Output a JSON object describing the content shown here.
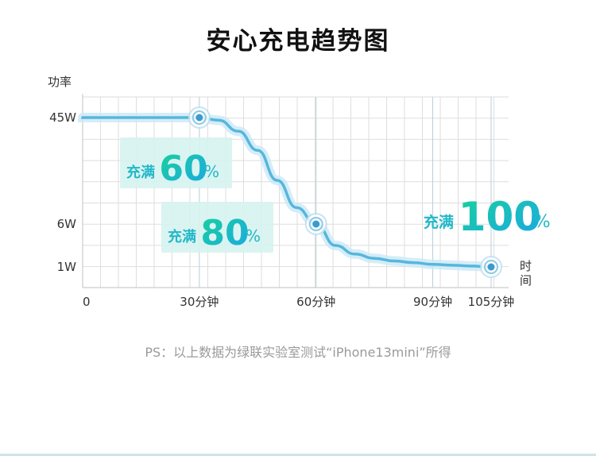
{
  "title": "安心充电趋势图",
  "note": "PS：以上数据为绿联实验室测试“iPhone13mini”所得",
  "chart_data": {
    "type": "line",
    "title": "安心充电趋势图",
    "ylabel": "功率",
    "xlabel": "时间",
    "x_ticks": [
      {
        "value": 0,
        "label": "0"
      },
      {
        "value": 30,
        "label": "30分钟"
      },
      {
        "value": 60,
        "label": "60分钟"
      },
      {
        "value": 90,
        "label": "90分钟"
      },
      {
        "value": 105,
        "label": "105分钟"
      }
    ],
    "y_ticks": [
      {
        "value": 45,
        "label": "45W"
      },
      {
        "value": 6,
        "label": "6W"
      },
      {
        "value": 1,
        "label": "1W"
      }
    ],
    "series": [
      {
        "x": [
          0,
          10,
          20,
          30,
          35,
          40,
          45,
          50,
          55,
          60,
          65,
          70,
          75,
          80,
          85,
          90,
          95,
          100,
          105
        ],
        "y": [
          45,
          45,
          45,
          45,
          44,
          40,
          33,
          22,
          12,
          6,
          3.5,
          2.5,
          2,
          1.7,
          1.5,
          1.3,
          1.2,
          1.1,
          1
        ]
      }
    ],
    "markers": [
      {
        "x": 30,
        "y": 45
      },
      {
        "x": 60,
        "y": 6
      },
      {
        "x": 105,
        "y": 1
      }
    ],
    "annotations": [
      {
        "prefix": "充满",
        "value": "60",
        "unit": "%"
      },
      {
        "prefix": "充满",
        "value": "80",
        "unit": "%"
      },
      {
        "prefix": "充满",
        "value": "100",
        "unit": "%"
      }
    ],
    "grid": true,
    "colors": {
      "line": "#57b6dd",
      "glow": "#c9e9f6",
      "marker": "#3a9bd0",
      "label_box": "#d6f3ef",
      "label_text": "#22b8c8",
      "grid": "#dedede"
    }
  }
}
